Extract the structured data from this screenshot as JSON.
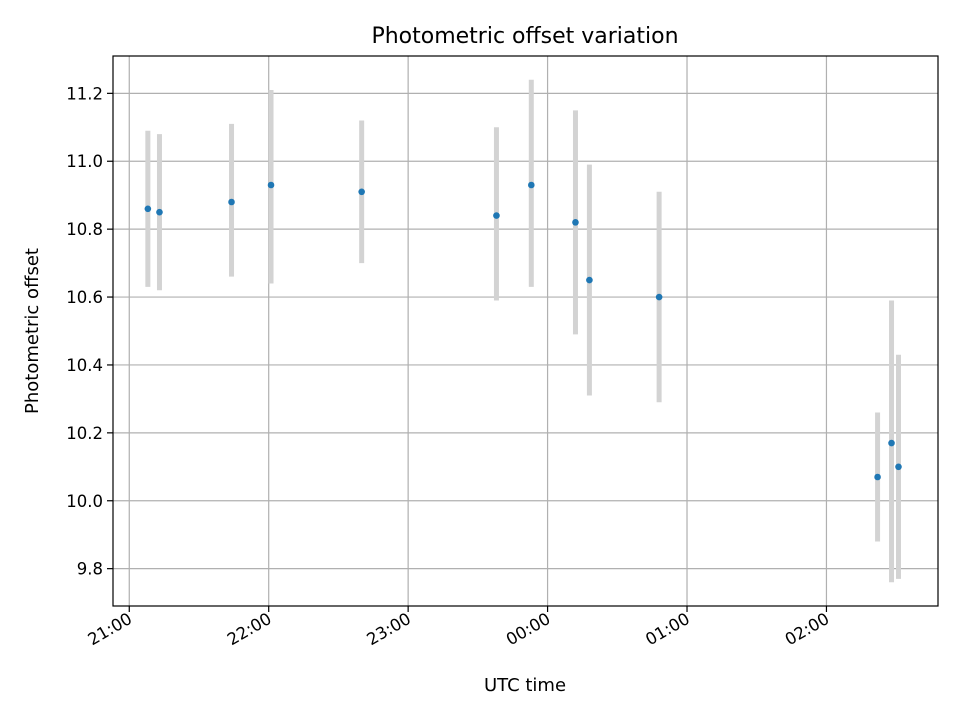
{
  "chart_data": {
    "type": "scatter",
    "title": "Photometric offset variation",
    "xlabel": "UTC time",
    "ylabel": "Photometric offset",
    "x_axis_kind": "time",
    "x_ticks": [
      "21:00",
      "22:00",
      "23:00",
      "00:00",
      "01:00",
      "02:00"
    ],
    "y_ticks": [
      "9.8",
      "10.0",
      "10.2",
      "10.4",
      "10.6",
      "10.8",
      "11.0",
      "11.2"
    ],
    "ylim": [
      9.69,
      11.31
    ],
    "grid": true,
    "colors": {
      "point": "#1f77b4",
      "errorbar": "#d3d3d3",
      "grid": "#b0b0b0"
    },
    "points": [
      {
        "x": "21:08",
        "y": 10.86,
        "y_low": 10.63,
        "y_high": 11.09
      },
      {
        "x": "21:13",
        "y": 10.85,
        "y_low": 10.62,
        "y_high": 11.08
      },
      {
        "x": "21:44",
        "y": 10.88,
        "y_low": 10.66,
        "y_high": 11.11
      },
      {
        "x": "22:01",
        "y": 10.93,
        "y_low": 10.64,
        "y_high": 11.21
      },
      {
        "x": "22:40",
        "y": 10.91,
        "y_low": 10.7,
        "y_high": 11.12
      },
      {
        "x": "23:38",
        "y": 10.84,
        "y_low": 10.59,
        "y_high": 11.1
      },
      {
        "x": "23:53",
        "y": 10.93,
        "y_low": 10.63,
        "y_high": 11.24
      },
      {
        "x": "00:12",
        "y": 10.82,
        "y_low": 10.49,
        "y_high": 11.15
      },
      {
        "x": "00:18",
        "y": 10.65,
        "y_low": 10.31,
        "y_high": 10.99
      },
      {
        "x": "00:48",
        "y": 10.6,
        "y_low": 10.29,
        "y_high": 10.91
      },
      {
        "x": "02:22",
        "y": 10.07,
        "y_low": 9.88,
        "y_high": 10.26
      },
      {
        "x": "02:28",
        "y": 10.17,
        "y_low": 9.76,
        "y_high": 10.59
      },
      {
        "x": "02:31",
        "y": 10.1,
        "y_low": 9.77,
        "y_high": 10.43
      }
    ]
  }
}
